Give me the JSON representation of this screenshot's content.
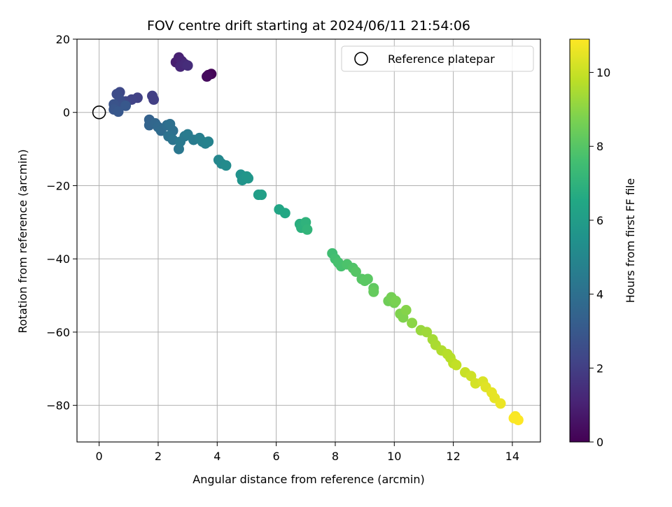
{
  "chart_data": {
    "type": "scatter",
    "title": "FOV centre drift starting at 2024/06/11 21:54:06",
    "xlabel": "Angular distance from reference (arcmin)",
    "ylabel": "Rotation from reference (arcmin)",
    "colorbar_label": "Hours from first FF file",
    "xlim": [
      -0.75,
      14.95
    ],
    "ylim": [
      -90,
      20
    ],
    "x_ticks": [
      0,
      2,
      4,
      6,
      8,
      10,
      12,
      14
    ],
    "y_ticks": [
      -80,
      -60,
      -40,
      -20,
      0,
      20
    ],
    "colorbar_range": [
      0,
      10.9
    ],
    "colorbar_ticks": [
      0,
      2,
      4,
      6,
      8,
      10
    ],
    "colormap": "viridis",
    "grid": true,
    "legend": {
      "position": "top-right",
      "entries": [
        "Reference platepar"
      ]
    },
    "reference_point": {
      "x": 0,
      "y": 0
    },
    "points": [
      {
        "x": 3.8,
        "y": 10.5,
        "t": 0.1
      },
      {
        "x": 3.7,
        "y": 10.2,
        "t": 0.2
      },
      {
        "x": 3.65,
        "y": 9.8,
        "t": 0.3
      },
      {
        "x": 2.6,
        "y": 13.7,
        "t": 0.9
      },
      {
        "x": 2.7,
        "y": 15.0,
        "t": 1.0
      },
      {
        "x": 2.8,
        "y": 14.0,
        "t": 1.1
      },
      {
        "x": 2.75,
        "y": 12.5,
        "t": 1.2
      },
      {
        "x": 2.9,
        "y": 13.2,
        "t": 1.3
      },
      {
        "x": 3.0,
        "y": 12.8,
        "t": 1.4
      },
      {
        "x": 1.8,
        "y": 4.5,
        "t": 2.0
      },
      {
        "x": 1.85,
        "y": 3.5,
        "t": 2.0
      },
      {
        "x": 1.3,
        "y": 4.0,
        "t": 2.1
      },
      {
        "x": 1.1,
        "y": 3.5,
        "t": 2.2
      },
      {
        "x": 0.9,
        "y": 3.0,
        "t": 2.3
      },
      {
        "x": 0.7,
        "y": 5.5,
        "t": 2.4
      },
      {
        "x": 0.6,
        "y": 5.0,
        "t": 2.5
      },
      {
        "x": 0.7,
        "y": 3.5,
        "t": 2.6
      },
      {
        "x": 0.8,
        "y": 2.0,
        "t": 2.7
      },
      {
        "x": 0.5,
        "y": 2.2,
        "t": 2.8
      },
      {
        "x": 0.5,
        "y": 0.8,
        "t": 2.9
      },
      {
        "x": 0.65,
        "y": 0.2,
        "t": 3.0
      },
      {
        "x": 0.9,
        "y": 1.8,
        "t": 3.0
      },
      {
        "x": 1.7,
        "y": -2.0,
        "t": 3.4
      },
      {
        "x": 1.7,
        "y": -3.5,
        "t": 3.5
      },
      {
        "x": 1.9,
        "y": -3.0,
        "t": 3.6
      },
      {
        "x": 2.0,
        "y": -4.0,
        "t": 3.7
      },
      {
        "x": 2.1,
        "y": -5.0,
        "t": 3.8
      },
      {
        "x": 2.3,
        "y": -3.5,
        "t": 3.9
      },
      {
        "x": 2.4,
        "y": -3.2,
        "t": 4.0
      },
      {
        "x": 2.5,
        "y": -5.0,
        "t": 4.0
      },
      {
        "x": 2.35,
        "y": -6.5,
        "t": 4.1
      },
      {
        "x": 2.5,
        "y": -7.5,
        "t": 4.2
      },
      {
        "x": 2.7,
        "y": -10.0,
        "t": 4.3
      },
      {
        "x": 2.75,
        "y": -8.0,
        "t": 4.4
      },
      {
        "x": 2.9,
        "y": -6.5,
        "t": 4.4
      },
      {
        "x": 3.0,
        "y": -6.0,
        "t": 4.5
      },
      {
        "x": 3.2,
        "y": -7.5,
        "t": 4.5
      },
      {
        "x": 3.4,
        "y": -7.0,
        "t": 4.6
      },
      {
        "x": 3.5,
        "y": -8.0,
        "t": 4.7
      },
      {
        "x": 3.6,
        "y": -8.5,
        "t": 4.7
      },
      {
        "x": 3.7,
        "y": -8.0,
        "t": 4.8
      },
      {
        "x": 4.05,
        "y": -13.0,
        "t": 5.0
      },
      {
        "x": 4.15,
        "y": -14.0,
        "t": 5.1
      },
      {
        "x": 4.3,
        "y": -14.5,
        "t": 5.2
      },
      {
        "x": 4.8,
        "y": -17.0,
        "t": 5.5
      },
      {
        "x": 4.85,
        "y": -18.5,
        "t": 5.6
      },
      {
        "x": 5.0,
        "y": -17.5,
        "t": 5.7
      },
      {
        "x": 5.05,
        "y": -18.0,
        "t": 5.7
      },
      {
        "x": 5.4,
        "y": -22.5,
        "t": 6.0
      },
      {
        "x": 5.5,
        "y": -22.5,
        "t": 6.1
      },
      {
        "x": 6.1,
        "y": -26.5,
        "t": 6.4
      },
      {
        "x": 6.3,
        "y": -27.5,
        "t": 6.5
      },
      {
        "x": 6.8,
        "y": -30.5,
        "t": 6.8
      },
      {
        "x": 6.85,
        "y": -31.5,
        "t": 6.9
      },
      {
        "x": 7.0,
        "y": -30.0,
        "t": 7.0
      },
      {
        "x": 7.05,
        "y": -32.0,
        "t": 7.1
      },
      {
        "x": 7.9,
        "y": -38.5,
        "t": 7.5
      },
      {
        "x": 8.0,
        "y": -40.0,
        "t": 7.6
      },
      {
        "x": 8.1,
        "y": -41.0,
        "t": 7.7
      },
      {
        "x": 8.2,
        "y": -42.0,
        "t": 7.7
      },
      {
        "x": 8.4,
        "y": -41.5,
        "t": 7.8
      },
      {
        "x": 8.6,
        "y": -42.5,
        "t": 7.9
      },
      {
        "x": 8.7,
        "y": -43.5,
        "t": 8.0
      },
      {
        "x": 8.9,
        "y": -45.5,
        "t": 8.0
      },
      {
        "x": 9.0,
        "y": -46.0,
        "t": 8.1
      },
      {
        "x": 9.1,
        "y": -45.5,
        "t": 8.1
      },
      {
        "x": 9.3,
        "y": -48.0,
        "t": 8.2
      },
      {
        "x": 9.3,
        "y": -49.0,
        "t": 8.3
      },
      {
        "x": 9.8,
        "y": -51.5,
        "t": 8.5
      },
      {
        "x": 9.9,
        "y": -50.5,
        "t": 8.6
      },
      {
        "x": 10.0,
        "y": -52.0,
        "t": 8.6
      },
      {
        "x": 10.05,
        "y": -51.5,
        "t": 8.7
      },
      {
        "x": 10.2,
        "y": -55.0,
        "t": 8.8
      },
      {
        "x": 10.3,
        "y": -56.0,
        "t": 8.8
      },
      {
        "x": 10.4,
        "y": -54.0,
        "t": 8.9
      },
      {
        "x": 10.6,
        "y": -57.5,
        "t": 9.0
      },
      {
        "x": 10.9,
        "y": -59.5,
        "t": 9.2
      },
      {
        "x": 11.1,
        "y": -60.0,
        "t": 9.3
      },
      {
        "x": 11.3,
        "y": -62.0,
        "t": 9.4
      },
      {
        "x": 11.4,
        "y": -63.5,
        "t": 9.5
      },
      {
        "x": 11.6,
        "y": -65.0,
        "t": 9.6
      },
      {
        "x": 11.8,
        "y": -66.0,
        "t": 9.7
      },
      {
        "x": 11.9,
        "y": -67.0,
        "t": 9.7
      },
      {
        "x": 12.0,
        "y": -68.5,
        "t": 9.8
      },
      {
        "x": 12.1,
        "y": -69.0,
        "t": 9.9
      },
      {
        "x": 12.4,
        "y": -71.0,
        "t": 10.0
      },
      {
        "x": 12.6,
        "y": -72.0,
        "t": 10.1
      },
      {
        "x": 12.75,
        "y": -74.0,
        "t": 10.2
      },
      {
        "x": 13.0,
        "y": -73.5,
        "t": 10.3
      },
      {
        "x": 13.1,
        "y": -75.0,
        "t": 10.4
      },
      {
        "x": 13.3,
        "y": -76.5,
        "t": 10.5
      },
      {
        "x": 13.4,
        "y": -78.0,
        "t": 10.5
      },
      {
        "x": 13.6,
        "y": -79.5,
        "t": 10.6
      },
      {
        "x": 14.1,
        "y": -83.0,
        "t": 10.8
      },
      {
        "x": 14.2,
        "y": -84.0,
        "t": 10.9
      },
      {
        "x": 14.05,
        "y": -83.5,
        "t": 10.85
      }
    ]
  }
}
